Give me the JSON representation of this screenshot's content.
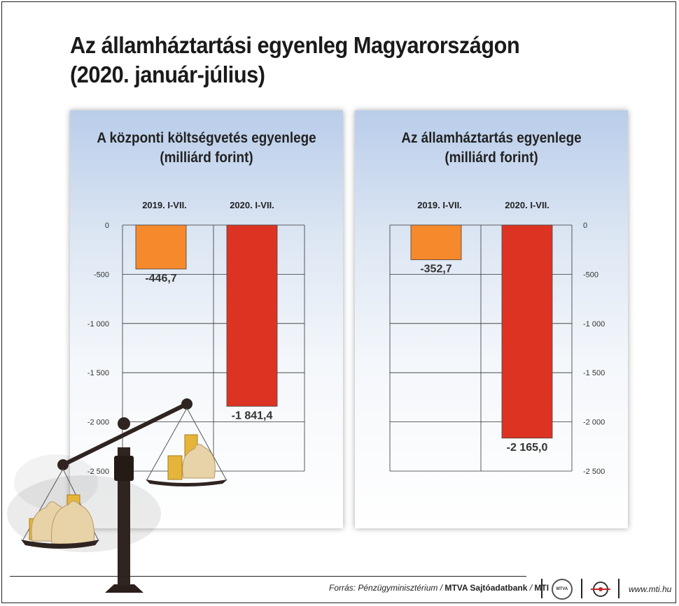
{
  "title_line1": "Az államháztartási egyenleg Magyarországon",
  "title_line2": "(2020. január-július)",
  "charts": [
    {
      "title_line1": "A központi költségvetés egyenlege",
      "title_line2": "(milliárd forint)"
    },
    {
      "title_line1": "Az államháztartás egyenlege",
      "title_line2": "(milliárd forint)"
    }
  ],
  "chart_data": [
    {
      "type": "bar",
      "title": "A központi költségvetés egyenlege (milliárd forint)",
      "categories": [
        "2019. I-VII.",
        "2020. I-VII."
      ],
      "values": [
        -446.7,
        -1841.4
      ],
      "value_labels": [
        "-446,7",
        "-1 841,4"
      ],
      "colors": [
        "#f6892b",
        "#dd3322"
      ],
      "ylim": [
        -2500,
        0
      ],
      "yticks": [
        0,
        -500,
        -1000,
        -1500,
        -2000,
        -2500
      ],
      "ytick_labels": [
        "0",
        "-500",
        "-1 000",
        "-1 500",
        "-2 000",
        "-2 500"
      ],
      "axis_side": "left",
      "grid": true
    },
    {
      "type": "bar",
      "title": "Az államháztartás egyenlege (milliárd forint)",
      "categories": [
        "2019. I-VII.",
        "2020. I-VII."
      ],
      "values": [
        -352.7,
        -2165.0
      ],
      "value_labels": [
        "-352,7",
        "-2 165,0"
      ],
      "colors": [
        "#f6892b",
        "#dd3322"
      ],
      "ylim": [
        -2500,
        0
      ],
      "yticks": [
        0,
        -500,
        -1000,
        -1500,
        -2000,
        -2500
      ],
      "ytick_labels": [
        "0",
        "-500",
        "-1 000",
        "-1 500",
        "-2 000",
        "-2 500"
      ],
      "axis_side": "right",
      "grid": true
    }
  ],
  "footer": {
    "source_prefix": "Forrás: Pénzügyminisztérium / ",
    "agency": "MTVA Sajtóadatbank",
    "sep": " / ",
    "mti": "MTI",
    "logo1_text": "MTVA",
    "website": "www.mti.hu"
  }
}
